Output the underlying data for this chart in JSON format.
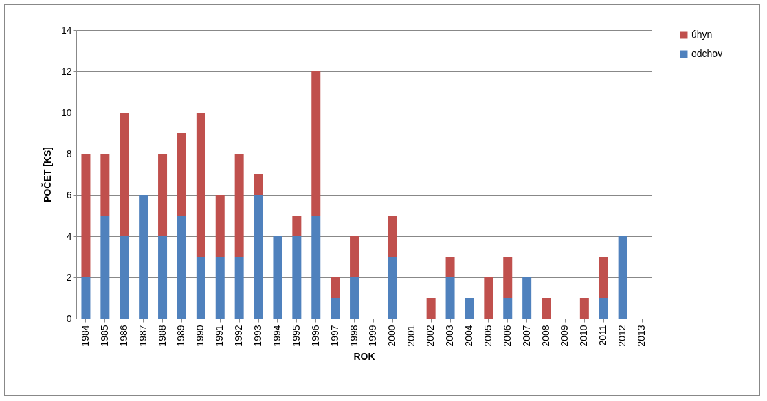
{
  "chart_data": {
    "type": "bar",
    "stacked": true,
    "xlabel": "ROK",
    "ylabel": "POČET [KS]",
    "categories": [
      "1984",
      "1985",
      "1986",
      "1987",
      "1988",
      "1989",
      "1990",
      "1991",
      "1992",
      "1993",
      "1994",
      "1995",
      "1996",
      "1997",
      "1998",
      "1999",
      "2000",
      "2001",
      "2002",
      "2003",
      "2004",
      "2005",
      "2006",
      "2007",
      "2008",
      "2009",
      "2010",
      "2011",
      "2012",
      "2013"
    ],
    "series": [
      {
        "name": "odchov",
        "color": "#4f81bd",
        "values": [
          2,
          5,
          4,
          6,
          4,
          5,
          3,
          3,
          3,
          6,
          4,
          4,
          5,
          1,
          2,
          0,
          3,
          0,
          0,
          2,
          1,
          0,
          1,
          2,
          0,
          0,
          0,
          1,
          4,
          0
        ]
      },
      {
        "name": "úhyn",
        "color": "#c0504d",
        "values": [
          6,
          3,
          6,
          0,
          4,
          4,
          7,
          3,
          5,
          1,
          0,
          1,
          7,
          1,
          2,
          0,
          2,
          0,
          1,
          1,
          0,
          2,
          2,
          0,
          1,
          0,
          1,
          2,
          0,
          0
        ]
      }
    ],
    "ylim": [
      0,
      14
    ],
    "yticks": [
      0,
      2,
      4,
      6,
      8,
      10,
      12,
      14
    ],
    "grid": "y",
    "legend": "right"
  }
}
